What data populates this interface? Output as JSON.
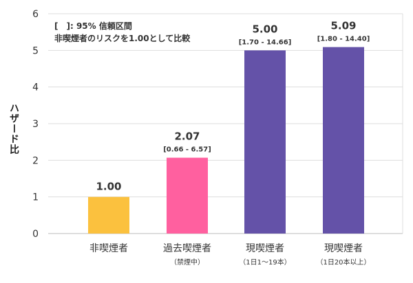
{
  "chart_data": {
    "type": "bar",
    "ylabel": "ハザード比",
    "ylim": [
      0,
      6
    ],
    "yticks": [
      "0",
      "1",
      "2",
      "3",
      "4",
      "5",
      "6"
    ],
    "grid": true,
    "note_lines": [
      "[　]: 95% 信頼区間",
      "非喫煙者のリスクを1.00として比較"
    ],
    "categories": [
      "非喫煙者",
      "過去喫煙者",
      "現喫煙者",
      "現喫煙者"
    ],
    "sublabels": [
      "",
      "（禁煙中）",
      "（1日1～19本）",
      "（1日20本以上）"
    ],
    "values": [
      1.0,
      2.07,
      5.0,
      5.09
    ],
    "value_labels": [
      "1.00",
      "2.07",
      "5.00",
      "5.09"
    ],
    "ci_labels": [
      "",
      "[0.66 - 6.57]",
      "[1.70 - 14.66]",
      "[1.80 - 14.40]"
    ],
    "colors": [
      "#FBC13E",
      "#FF609F",
      "#6452A8",
      "#6452A8"
    ]
  }
}
